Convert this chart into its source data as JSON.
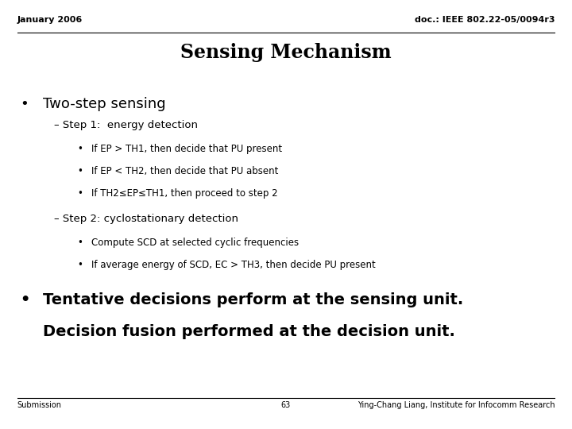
{
  "background_color": "#ffffff",
  "header_left": "January 2006",
  "header_right": "doc.: IEEE 802.22-05/0094r3",
  "title": "Sensing Mechanism",
  "bullet1": "Two-step sensing",
  "sub1": "– Step 1:  energy detection",
  "sub1_b1": "If EP > TH1, then decide that PU present",
  "sub1_b2": "If EP < TH2, then decide that PU absent",
  "sub1_b3": "If TH2≤EP≤TH1, then proceed to step 2",
  "sub2": "– Step 2: cyclostationary detection",
  "sub2_b1": "Compute SCD at selected cyclic frequencies",
  "sub2_b2": "If average energy of SCD, EC > TH3, then decide PU present",
  "bullet2_line1": "Tentative decisions perform at the sensing unit.",
  "bullet2_line2": "Decision fusion performed at the decision unit.",
  "footer_left": "Submission",
  "footer_center": "63",
  "footer_right": "Ying-Chang Liang, Institute for Infocomm Research",
  "header_fontsize": 8,
  "title_fontsize": 17,
  "bullet1_fontsize": 13,
  "sub_fontsize": 9.5,
  "sub_bullet_fontsize": 8.5,
  "bullet2_fontsize": 14,
  "footer_fontsize": 7,
  "header_color": "#000000",
  "title_color": "#000000",
  "text_color": "#000000",
  "footer_color": "#000000",
  "line_color": "#000000"
}
